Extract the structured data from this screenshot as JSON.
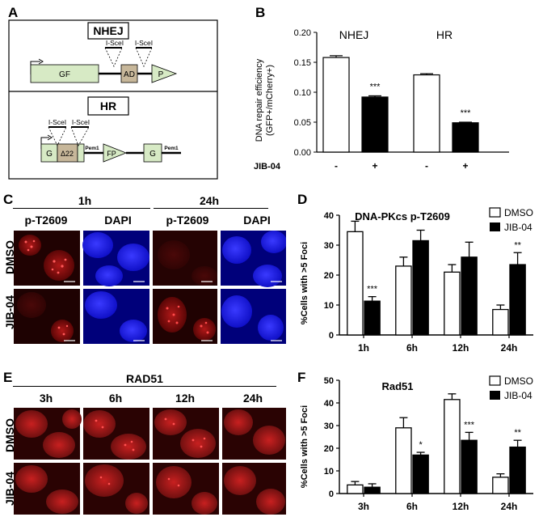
{
  "panels": {
    "A": {
      "letter": "A",
      "nhej_title": "NHEJ",
      "hr_title": "HR",
      "nhej_isce_1": "I-SceI",
      "nhej_isce_2": "I-SceI",
      "nhej_gf": "GF",
      "nhej_ad": "AD",
      "nhej_p": "P",
      "hr_isce_1": "I-SceI",
      "hr_isce_2": "I-SceI",
      "hr_g1": "G",
      "hr_delta": "Δ22",
      "hr_pem1_a": "Pem1",
      "hr_fp": "FP",
      "hr_g2": "G",
      "hr_pem1_b": "Pem1"
    },
    "B": {
      "letter": "B",
      "ylabel_line1": "DNA repair efficiency",
      "ylabel_line2": "(GFP+/mCherry+)",
      "xaxis_title": "JIB-04",
      "group_nhej": "NHEJ",
      "group_hr": "HR"
    },
    "C": {
      "letter": "C",
      "time_1h": "1h",
      "time_24h": "24h",
      "col_pt2609_a": "p-T2609",
      "col_dapi_a": "DAPI",
      "col_pt2609_b": "p-T2609",
      "col_dapi_b": "DAPI",
      "row_dmso": "DMSO",
      "row_jib": "JIB-04"
    },
    "D": {
      "letter": "D",
      "title": "DNA-PKcs p-T2609",
      "ylabel": "%Cells with >5 Foci",
      "legend_dmso": "DMSO",
      "legend_jib": "JIB-04"
    },
    "E": {
      "letter": "E",
      "title": "RAD51",
      "col_3h": "3h",
      "col_6h": "6h",
      "col_12h": "12h",
      "col_24h": "24h",
      "row_dmso": "DMSO",
      "row_jib": "JIB-04"
    },
    "F": {
      "letter": "F",
      "title": "Rad51",
      "ylabel": "%Cells with >5 Foci",
      "legend_dmso": "DMSO",
      "legend_jib": "JIB-04"
    }
  },
  "colors": {
    "construct_fill": "#d7eac5",
    "construct_accent": "#c7b79a",
    "dapi_blue": "#1a1aff",
    "foci_red": "#e03030",
    "bar_dmso": "#ffffff",
    "bar_jib": "#000000"
  },
  "chart_data": [
    {
      "panel": "B",
      "type": "bar",
      "ylim": [
        0,
        0.2
      ],
      "yticks": [
        "0.00",
        "0.05",
        "0.10",
        "0.15",
        "0.20"
      ],
      "groups": [
        {
          "name": "NHEJ",
          "bars": [
            {
              "condition": "-",
              "value": 0.158,
              "error": 0.003,
              "sig": ""
            },
            {
              "condition": "+",
              "value": 0.092,
              "error": 0.002,
              "sig": "***"
            }
          ]
        },
        {
          "name": "HR",
          "bars": [
            {
              "condition": "-",
              "value": 0.129,
              "error": 0.002,
              "sig": ""
            },
            {
              "condition": "+",
              "value": 0.049,
              "error": 0.001,
              "sig": "***"
            }
          ]
        }
      ]
    },
    {
      "panel": "D",
      "type": "bar",
      "ylim": [
        0,
        40
      ],
      "yticks": [
        "0",
        "10",
        "20",
        "30",
        "40"
      ],
      "categories": [
        "1h",
        "6h",
        "12h",
        "24h"
      ],
      "series": [
        {
          "name": "DMSO",
          "values": [
            34.5,
            23,
            21,
            8.5
          ],
          "errors": [
            3.5,
            3,
            2.5,
            1.5
          ]
        },
        {
          "name": "JIB-04",
          "values": [
            11.3,
            31.5,
            26,
            23.5
          ],
          "errors": [
            1.5,
            3.5,
            5,
            4
          ]
        }
      ],
      "significance": [
        "***",
        "",
        "",
        "**"
      ],
      "legend": "top-right"
    },
    {
      "panel": "F",
      "type": "bar",
      "ylim": [
        0,
        50
      ],
      "yticks": [
        "0",
        "10",
        "20",
        "30",
        "40",
        "50"
      ],
      "categories": [
        "3h",
        "6h",
        "12h",
        "24h"
      ],
      "series": [
        {
          "name": "DMSO",
          "values": [
            3.8,
            29,
            41.5,
            7.2
          ],
          "errors": [
            1.5,
            4.5,
            2.5,
            1.5
          ]
        },
        {
          "name": "JIB-04",
          "values": [
            2.8,
            17,
            23.5,
            20.5
          ],
          "errors": [
            1.5,
            1.2,
            3.5,
            3
          ]
        }
      ],
      "significance": [
        "",
        "*",
        "***",
        "**"
      ],
      "legend": "top-right"
    }
  ]
}
